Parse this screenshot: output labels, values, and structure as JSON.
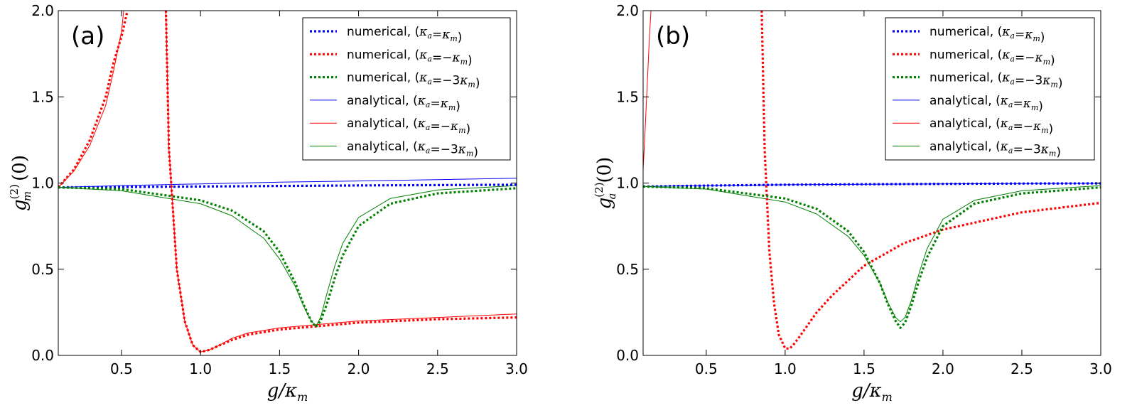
{
  "chart_data": [
    {
      "type": "line",
      "panel_label": "(a)",
      "xlabel": "g/κm",
      "ylabel": "g(2)m(0)",
      "xlim": [
        0.1,
        3.0
      ],
      "ylim": [
        0.0,
        2.0
      ],
      "xticks": [
        "0.5",
        "1.0",
        "1.5",
        "2.0",
        "2.5",
        "3.0"
      ],
      "yticks": [
        "0.0",
        "0.5",
        "1.0",
        "1.5",
        "2.0"
      ],
      "legend_position": "top-right",
      "series": [
        {
          "name": "numerical,  (κa=κm)",
          "color": "#0000ff",
          "style": "dotted",
          "x": [
            0.1,
            0.5,
            1.0,
            1.5,
            2.0,
            2.5,
            3.0
          ],
          "y": [
            0.975,
            0.977,
            0.98,
            0.983,
            0.986,
            0.988,
            0.99
          ]
        },
        {
          "name": "numerical, (κa=−κm)",
          "color": "#ff0000",
          "style": "dotted",
          "x": [
            0.1,
            0.2,
            0.3,
            0.4,
            0.45,
            0.5,
            0.55,
            null,
            0.78,
            0.8,
            0.85,
            0.9,
            0.95,
            1.0,
            1.05,
            1.1,
            1.2,
            1.3,
            1.5,
            1.75,
            2.0,
            2.5,
            3.0
          ],
          "y": [
            0.975,
            1.08,
            1.25,
            1.5,
            1.7,
            1.85,
            2.05,
            null,
            2.05,
            1.2,
            0.5,
            0.2,
            0.06,
            0.02,
            0.03,
            0.05,
            0.09,
            0.12,
            0.15,
            0.17,
            0.19,
            0.21,
            0.22
          ]
        },
        {
          "name": "numerical, (κa=−3κm)",
          "color": "#008000",
          "style": "dotted",
          "x": [
            0.1,
            0.5,
            1.0,
            1.2,
            1.4,
            1.5,
            1.6,
            1.65,
            1.7,
            1.73,
            1.76,
            1.8,
            1.85,
            1.9,
            2.0,
            2.2,
            2.5,
            3.0
          ],
          "y": [
            0.975,
            0.965,
            0.9,
            0.84,
            0.72,
            0.6,
            0.42,
            0.3,
            0.2,
            0.165,
            0.2,
            0.3,
            0.45,
            0.58,
            0.75,
            0.88,
            0.94,
            0.97
          ]
        },
        {
          "name": "analytical, (κa=κm)",
          "color": "#0000ff",
          "style": "solid",
          "x": [
            0.1,
            0.5,
            1.0,
            1.5,
            2.0,
            2.5,
            3.0
          ],
          "y": [
            0.975,
            0.985,
            0.995,
            1.005,
            1.012,
            1.02,
            1.028
          ]
        },
        {
          "name": "analytical, (κa=−κm)",
          "color": "#ff0000",
          "style": "solid",
          "x": [
            0.1,
            0.2,
            0.3,
            0.4,
            0.45,
            0.5,
            0.52,
            null,
            0.78,
            0.8,
            0.85,
            0.9,
            0.95,
            1.0,
            1.05,
            1.1,
            1.2,
            1.3,
            1.5,
            1.75,
            2.0,
            2.5,
            3.0
          ],
          "y": [
            0.975,
            1.07,
            1.22,
            1.45,
            1.65,
            1.88,
            2.05,
            null,
            2.05,
            1.2,
            0.5,
            0.2,
            0.06,
            0.02,
            0.03,
            0.05,
            0.1,
            0.13,
            0.16,
            0.18,
            0.2,
            0.22,
            0.24
          ]
        },
        {
          "name": "analytical, (κa=−3κm)",
          "color": "#008000",
          "style": "solid",
          "x": [
            0.1,
            0.5,
            1.0,
            1.2,
            1.4,
            1.5,
            1.6,
            1.65,
            1.7,
            1.73,
            1.76,
            1.8,
            1.85,
            1.9,
            2.0,
            2.2,
            2.5,
            3.0
          ],
          "y": [
            0.975,
            0.955,
            0.88,
            0.81,
            0.68,
            0.56,
            0.4,
            0.29,
            0.2,
            0.17,
            0.22,
            0.36,
            0.52,
            0.65,
            0.8,
            0.91,
            0.96,
            0.985
          ]
        }
      ]
    },
    {
      "type": "line",
      "panel_label": "(b)",
      "xlabel": "g/κm",
      "ylabel": "g(2)a(0)",
      "xlim": [
        0.1,
        3.0
      ],
      "ylim": [
        0.0,
        2.0
      ],
      "xticks": [
        "0.5",
        "1.0",
        "1.5",
        "2.0",
        "2.5",
        "3.0"
      ],
      "yticks": [
        "0.0",
        "0.5",
        "1.0",
        "1.5",
        "2.0"
      ],
      "legend_position": "top-right",
      "series": [
        {
          "name": "numerical,  (κa=κm)",
          "color": "#0000ff",
          "style": "dotted",
          "x": [
            0.1,
            0.5,
            1.0,
            1.5,
            2.0,
            2.5,
            3.0
          ],
          "y": [
            0.98,
            0.985,
            0.99,
            0.993,
            0.995,
            0.997,
            0.998
          ]
        },
        {
          "name": "numerical, (κa=−κm)",
          "color": "#ff0000",
          "style": "dotted",
          "x": [
            0.85,
            0.87,
            0.9,
            0.93,
            0.96,
            1.0,
            1.03,
            1.06,
            1.1,
            1.2,
            1.3,
            1.5,
            1.75,
            2.0,
            2.5,
            3.0
          ],
          "y": [
            2.05,
            1.2,
            0.6,
            0.3,
            0.12,
            0.04,
            0.04,
            0.07,
            0.12,
            0.25,
            0.35,
            0.52,
            0.65,
            0.73,
            0.83,
            0.885
          ]
        },
        {
          "name": "numerical, (κa=−3κm)",
          "color": "#008000",
          "style": "dotted",
          "x": [
            0.1,
            0.5,
            1.0,
            1.2,
            1.4,
            1.5,
            1.6,
            1.65,
            1.7,
            1.73,
            1.76,
            1.8,
            1.85,
            1.9,
            2.0,
            2.2,
            2.5,
            3.0
          ],
          "y": [
            0.98,
            0.97,
            0.91,
            0.85,
            0.72,
            0.6,
            0.42,
            0.3,
            0.2,
            0.16,
            0.19,
            0.29,
            0.44,
            0.57,
            0.75,
            0.88,
            0.94,
            0.975
          ]
        },
        {
          "name": "analytical, (κa=κm)",
          "color": "#0000ff",
          "style": "solid",
          "x": [
            0.1,
            0.5,
            1.0,
            1.5,
            2.0,
            2.5,
            3.0
          ],
          "y": [
            0.98,
            0.985,
            0.99,
            0.993,
            0.995,
            0.997,
            0.998
          ]
        },
        {
          "name": "analytical, (κa=−κm)",
          "color": "#ff0000",
          "style": "solid",
          "x": [
            0.1,
            0.11,
            0.12,
            0.13,
            0.14,
            0.15,
            0.16
          ],
          "y": [
            1.08,
            1.25,
            1.45,
            1.65,
            1.85,
            2.0,
            2.05
          ]
        },
        {
          "name": "analytical, (κa=−3κm)",
          "color": "#008000",
          "style": "solid",
          "x": [
            0.1,
            0.5,
            1.0,
            1.2,
            1.4,
            1.5,
            1.6,
            1.65,
            1.7,
            1.73,
            1.76,
            1.8,
            1.85,
            1.9,
            2.0,
            2.2,
            2.5,
            3.0
          ],
          "y": [
            0.98,
            0.965,
            0.89,
            0.82,
            0.69,
            0.58,
            0.42,
            0.31,
            0.22,
            0.195,
            0.22,
            0.32,
            0.48,
            0.62,
            0.79,
            0.9,
            0.955,
            0.985
          ]
        }
      ]
    }
  ]
}
